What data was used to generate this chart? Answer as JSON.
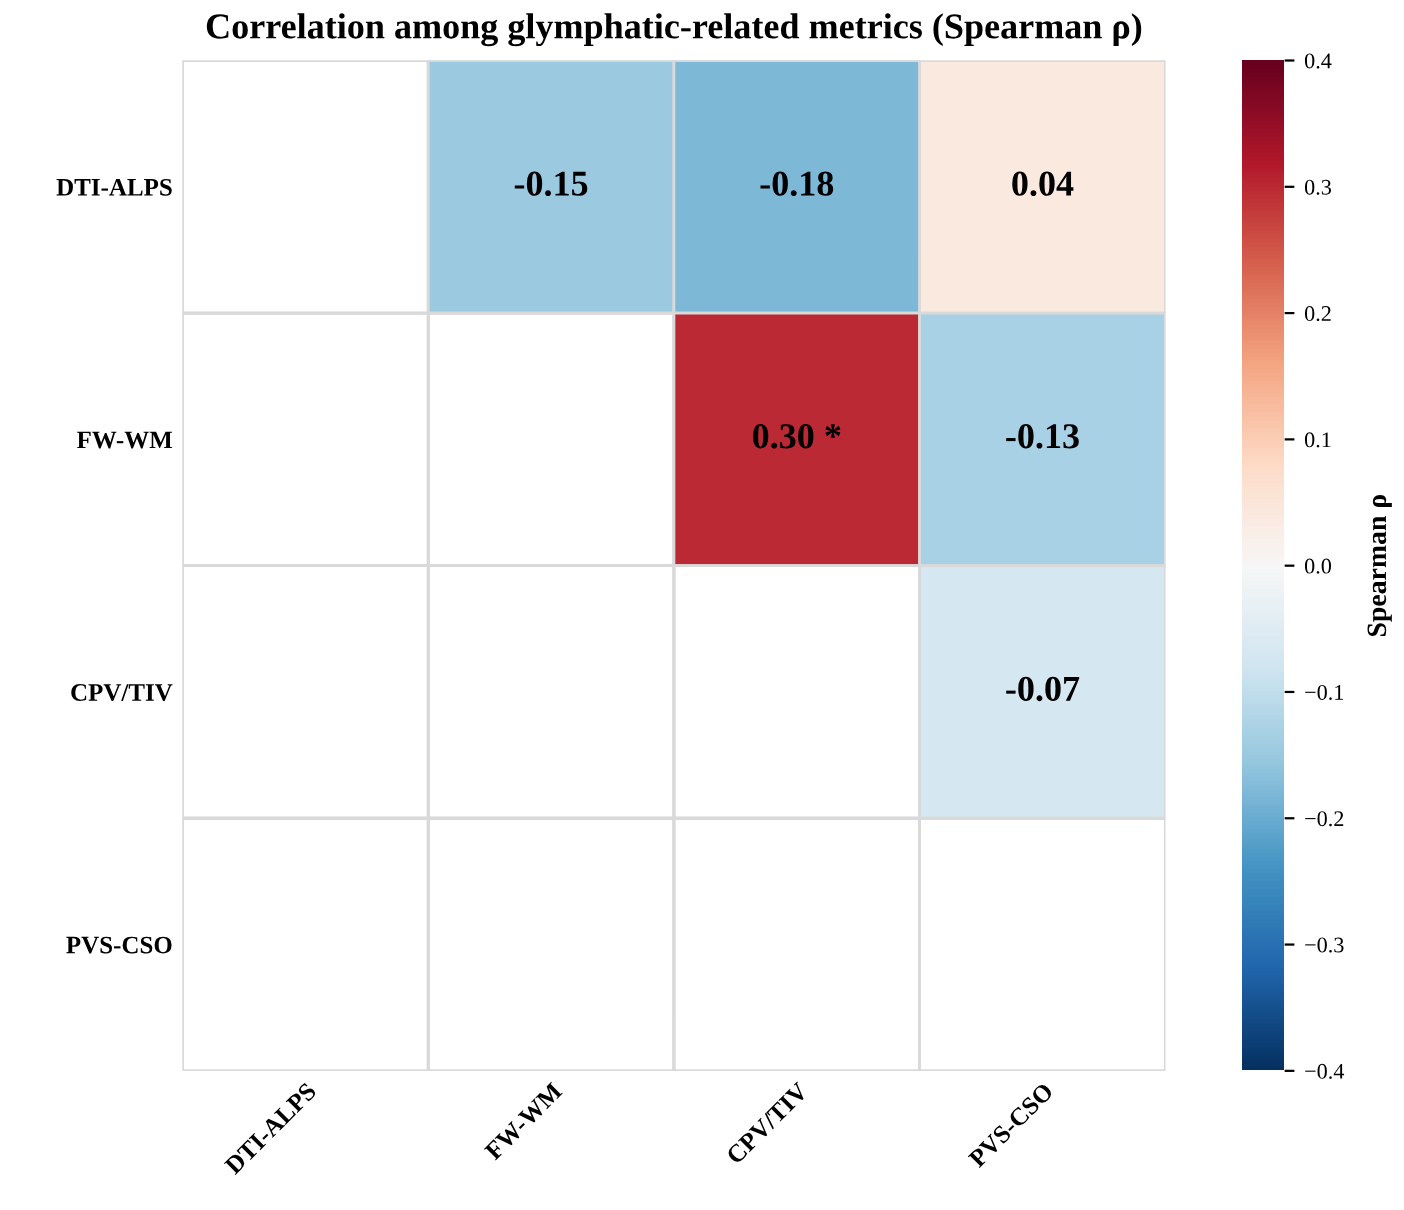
{
  "chart_data": {
    "type": "heatmap",
    "title": "Correlation among glymphatic-related metrics (Spearman ρ)",
    "categories": [
      "DTI-ALPS",
      "FW-WM",
      "CPV/TIV",
      "PVS-CSO"
    ],
    "y_categories": [
      "DTI-ALPS",
      "FW-WM",
      "CPV/TIV",
      "PVS-CSO"
    ],
    "cells": [
      [
        null,
        -0.15,
        -0.18,
        0.04
      ],
      [
        null,
        null,
        0.3,
        -0.13
      ],
      [
        null,
        null,
        null,
        -0.07
      ],
      [
        null,
        null,
        null,
        null
      ]
    ],
    "cell_labels": [
      [
        null,
        "-0.15",
        "-0.18",
        "0.04"
      ],
      [
        null,
        null,
        "0.30 *",
        "-0.13"
      ],
      [
        null,
        null,
        null,
        "-0.07"
      ],
      [
        null,
        null,
        null,
        null
      ]
    ],
    "clim": [
      -0.4,
      0.4
    ],
    "cticks": [
      {
        "value": -0.4,
        "label": "−0.4"
      },
      {
        "value": -0.3,
        "label": "−0.3"
      },
      {
        "value": -0.2,
        "label": "−0.2"
      },
      {
        "value": -0.1,
        "label": "−0.1"
      },
      {
        "value": 0.0,
        "label": "0.0"
      },
      {
        "value": 0.1,
        "label": "0.1"
      },
      {
        "value": 0.2,
        "label": "0.2"
      },
      {
        "value": 0.3,
        "label": "0.3"
      },
      {
        "value": 0.4,
        "label": "0.4"
      }
    ],
    "clabel": "Spearman ρ",
    "grid": true
  }
}
